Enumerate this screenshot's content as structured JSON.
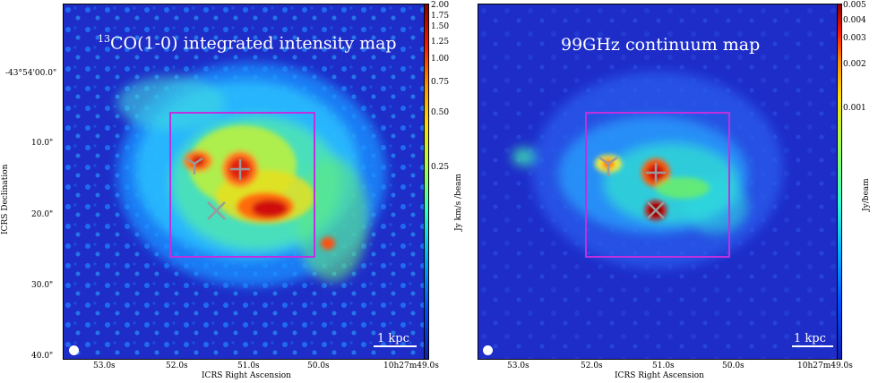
{
  "left_panel": {
    "title_sup": "13",
    "title_main": "CO(1-0) integrated intensity map",
    "y_axis_title": "ICRS Declination",
    "x_axis_title": "ICRS Right Ascension",
    "y_ticks": [
      "-43°54'00.0\"",
      "10.0\"",
      "20.0\"",
      "30.0\"",
      "40.0\""
    ],
    "x_ticks": [
      "53.0s",
      "52.0s",
      "51.0s",
      "50.0s",
      "10h27m49.0s"
    ],
    "scalebar": "1 kpc",
    "colorbar_title": "Jy km/s /beam",
    "colorbar_ticks": [
      "2.00",
      "1.75",
      "1.50",
      "1.25",
      "1.00",
      "0.75",
      "0.50",
      "0.25"
    ]
  },
  "right_panel": {
    "title": "99GHz continuum map",
    "x_axis_title": "ICRS Right Ascension",
    "x_ticks": [
      "53.0s",
      "52.0s",
      "51.0s",
      "50.0s",
      "10h27m49.0s"
    ],
    "scalebar": "1 kpc",
    "colorbar_title": "Jy/beam",
    "colorbar_ticks": [
      "0.005",
      "0.004",
      "0.003",
      "0.002",
      "0.001"
    ]
  },
  "colors": {
    "background_blue": "#1e2dc8",
    "box": "#c030e0",
    "marker": "#9a9a9a"
  }
}
